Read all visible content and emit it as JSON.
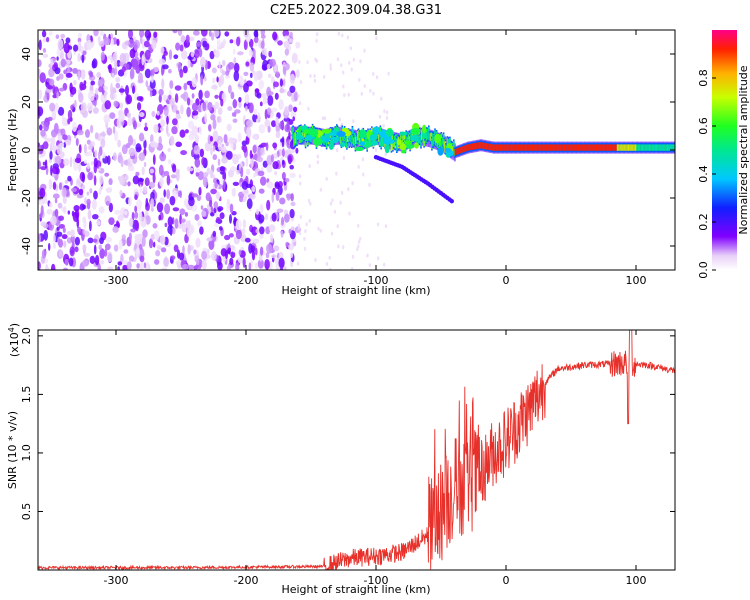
{
  "title": "C2E5.2022.309.04.38.G31",
  "chart_data": [
    {
      "type": "heatmap",
      "xlabel": "Height of straight line (km)",
      "ylabel": "Frequency (Hz)",
      "xlim": [
        -360,
        130
      ],
      "ylim": [
        -50,
        50
      ],
      "x_ticks": [
        -300,
        -200,
        -100,
        0,
        100
      ],
      "y_ticks": [
        -40,
        -20,
        0,
        20,
        40
      ],
      "colorbar": {
        "label": "Normalized spectral amplitude",
        "range": [
          0,
          1
        ],
        "ticks": [
          0.0,
          0.2,
          0.4,
          0.6,
          0.8
        ],
        "tick_labels": [
          "0.0",
          "0.2",
          "0.4",
          "0.6",
          "0.8"
        ]
      },
      "regions": [
        {
          "x_range": [
            -360,
            -160
          ],
          "y_range": [
            -50,
            50
          ],
          "level": 0.2
        },
        {
          "x_range": [
            -160,
            -40
          ],
          "y_center": 5,
          "level": 0.5
        },
        {
          "x_range": [
            -40,
            90
          ],
          "y_center": 1,
          "level": 0.95
        },
        {
          "x_range": [
            90,
            130
          ],
          "y_center": 1,
          "level": 0.45
        }
      ],
      "trace": [
        [
          -160,
          6
        ],
        [
          -150,
          6
        ],
        [
          -140,
          5
        ],
        [
          -130,
          6
        ],
        [
          -120,
          5
        ],
        [
          -110,
          4
        ],
        [
          -100,
          6
        ],
        [
          -90,
          4
        ],
        [
          -80,
          3
        ],
        [
          -70,
          6
        ],
        [
          -60,
          5
        ],
        [
          -50,
          3
        ],
        [
          -40,
          -1
        ],
        [
          -30,
          1
        ],
        [
          -20,
          2
        ],
        [
          -10,
          1
        ],
        [
          0,
          1
        ],
        [
          20,
          1
        ],
        [
          40,
          1
        ],
        [
          60,
          1
        ],
        [
          80,
          1
        ],
        [
          95,
          1
        ],
        [
          110,
          1
        ],
        [
          130,
          1
        ]
      ],
      "secondary_trace": [
        [
          -100,
          -3
        ],
        [
          -80,
          -7
        ],
        [
          -60,
          -14
        ],
        [
          -40,
          -22
        ]
      ]
    },
    {
      "type": "line",
      "xlabel": "Height of straight line (km)",
      "ylabel": "SNR (10 * v/v)",
      "y_multiplier": "(x10",
      "y_multiplier_exp": "4",
      "y_multiplier_close": ")",
      "xlim": [
        -360,
        130
      ],
      "ylim": [
        0,
        2.05
      ],
      "x_ticks": [
        -300,
        -200,
        -100,
        0,
        100
      ],
      "y_ticks": [
        0.5,
        1.0,
        1.5,
        2.0
      ],
      "y_tick_labels": [
        "0.5",
        "1.0",
        "1.5",
        "2.0"
      ],
      "color": "#e8302a",
      "envelope": [
        [
          -360,
          0.02
        ],
        [
          -250,
          0.02
        ],
        [
          -140,
          0.03
        ],
        [
          -120,
          0.1
        ],
        [
          -100,
          0.12
        ],
        [
          -80,
          0.15
        ],
        [
          -60,
          0.3
        ],
        [
          -50,
          0.5
        ],
        [
          -40,
          0.7
        ],
        [
          -30,
          0.75
        ],
        [
          -20,
          0.8
        ],
        [
          -15,
          0.9
        ],
        [
          -10,
          1.0
        ],
        [
          0,
          1.1
        ],
        [
          10,
          1.25
        ],
        [
          20,
          1.4
        ],
        [
          30,
          1.6
        ],
        [
          40,
          1.72
        ],
        [
          60,
          1.75
        ],
        [
          80,
          1.76
        ],
        [
          90,
          1.77
        ],
        [
          110,
          1.75
        ],
        [
          130,
          1.7
        ]
      ]
    }
  ]
}
